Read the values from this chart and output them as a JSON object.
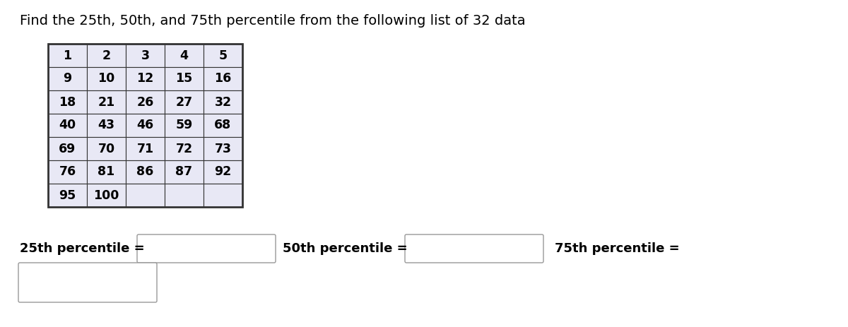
{
  "title": "Find the 25th, 50th, and 75th percentile from the following list of 32 data",
  "title_fontsize": 14,
  "table_data": [
    [
      1,
      2,
      3,
      4,
      5
    ],
    [
      9,
      10,
      12,
      15,
      16
    ],
    [
      18,
      21,
      26,
      27,
      32
    ],
    [
      40,
      43,
      46,
      59,
      68
    ],
    [
      69,
      70,
      71,
      72,
      73
    ],
    [
      76,
      81,
      86,
      87,
      92
    ],
    [
      95,
      100,
      "",
      "",
      ""
    ]
  ],
  "table_cell_color": "#e8e8f5",
  "table_border_color": "#333333",
  "table_font_size": 12.5,
  "label_25": "25th percentile =",
  "label_50": "50th percentile =",
  "label_75": "75th percentile =",
  "label_fontsize": 13,
  "background_color": "#ffffff"
}
